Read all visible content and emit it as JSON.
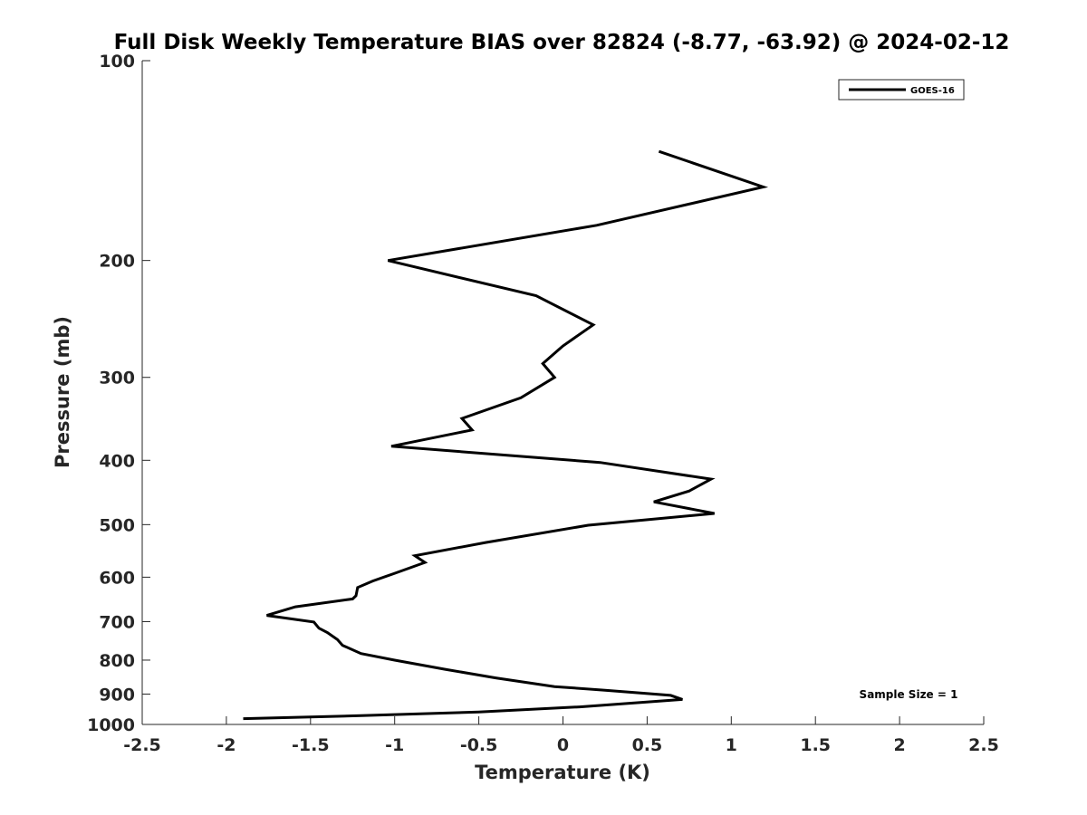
{
  "chart_data": {
    "type": "line",
    "title": "Full Disk Weekly Temperature BIAS over 82824 (-8.77, -63.92) @ 2024-02-12",
    "xlabel": "Temperature (K)",
    "ylabel": "Pressure (mb)",
    "xlim": [
      -2.5,
      2.5
    ],
    "ylim": [
      100,
      1000
    ],
    "y_scale": "log",
    "y_reversed": true,
    "x_ticks": [
      -2.5,
      -2,
      -1.5,
      -1,
      -0.5,
      0,
      0.5,
      1,
      1.5,
      2,
      2.5
    ],
    "x_tick_labels": [
      "-2.5",
      "-2",
      "-1.5",
      "-1",
      "-0.5",
      "0",
      "0.5",
      "1",
      "1.5",
      "2",
      "2.5"
    ],
    "y_ticks": [
      100,
      200,
      300,
      400,
      500,
      600,
      700,
      800,
      900,
      1000
    ],
    "y_tick_labels": [
      "100",
      "200",
      "300",
      "400",
      "500",
      "600",
      "700",
      "800",
      "900",
      "1000"
    ],
    "grid": false,
    "legend": {
      "position": "top-right",
      "entries": [
        "GOES-16"
      ]
    },
    "annotation": "Sample Size = 1",
    "series": [
      {
        "name": "GOES-16",
        "color": "#000000",
        "points": [
          [
            0.57,
            137
          ],
          [
            1.19,
            155
          ],
          [
            0.2,
            177
          ],
          [
            -1.04,
            200
          ],
          [
            -0.16,
            226
          ],
          [
            0.18,
            250
          ],
          [
            0.0,
            269
          ],
          [
            -0.12,
            286
          ],
          [
            -0.05,
            300
          ],
          [
            -0.25,
            322
          ],
          [
            -0.6,
            346
          ],
          [
            -0.54,
            360
          ],
          [
            -1.02,
            381
          ],
          [
            0.22,
            403
          ],
          [
            0.88,
            427
          ],
          [
            0.75,
            445
          ],
          [
            0.54,
            462
          ],
          [
            0.9,
            481
          ],
          [
            0.15,
            501
          ],
          [
            -0.46,
            532
          ],
          [
            -0.88,
            557
          ],
          [
            -0.82,
            570
          ],
          [
            -1.0,
            592
          ],
          [
            -1.13,
            608
          ],
          [
            -1.22,
            622
          ],
          [
            -1.23,
            640
          ],
          [
            -1.25,
            647
          ],
          [
            -1.59,
            665
          ],
          [
            -1.76,
            685
          ],
          [
            -1.48,
            701
          ],
          [
            -1.45,
            716
          ],
          [
            -1.4,
            727
          ],
          [
            -1.34,
            745
          ],
          [
            -1.31,
            760
          ],
          [
            -1.2,
            782
          ],
          [
            -1.0,
            800
          ],
          [
            -0.7,
            826
          ],
          [
            -0.4,
            851
          ],
          [
            -0.05,
            877
          ],
          [
            0.25,
            888
          ],
          [
            0.64,
            904
          ],
          [
            0.71,
            917
          ],
          [
            0.1,
            941
          ],
          [
            -0.5,
            958
          ],
          [
            -1.2,
            970
          ],
          [
            -1.9,
            980
          ]
        ]
      }
    ]
  }
}
